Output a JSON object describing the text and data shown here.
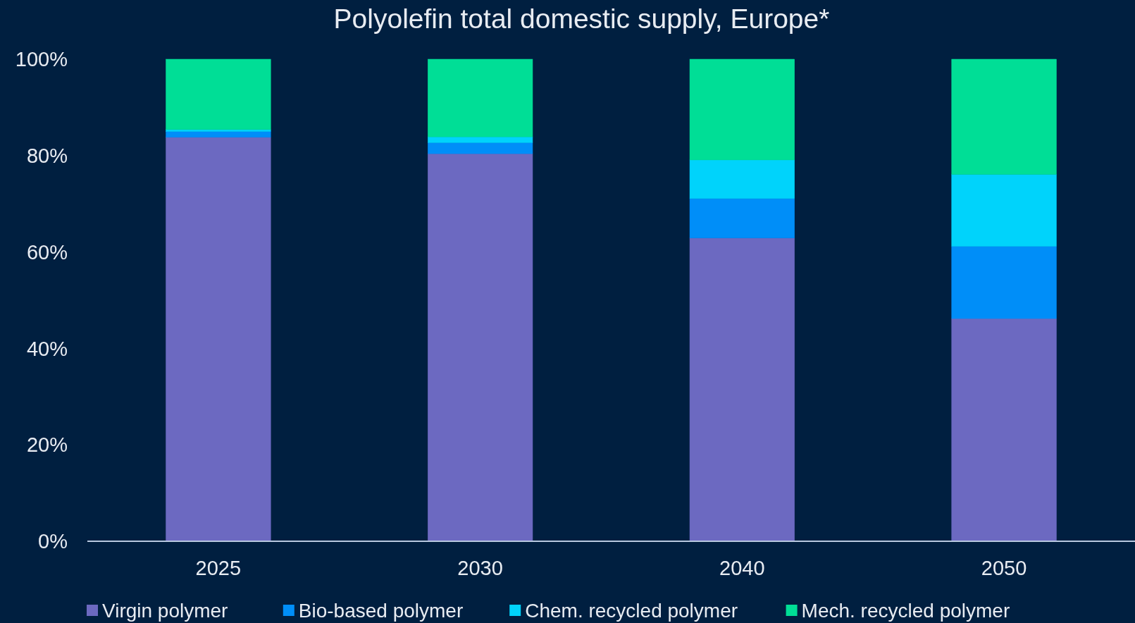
{
  "chart_data": {
    "type": "bar",
    "title": "Polyolefin total domestic supply, Europe*",
    "stacked": true,
    "categories": [
      "2025",
      "2030",
      "2040",
      "2050"
    ],
    "series": [
      {
        "name": "Virgin polymer",
        "color": "#6c69c1",
        "values": [
          83.8,
          80.4,
          62.9,
          46.2
        ]
      },
      {
        "name": "Bio-based polymer",
        "color": "#008ef8",
        "values": [
          1.2,
          2.3,
          8.2,
          15.0
        ]
      },
      {
        "name": "Chem. recycled polymer",
        "color": "#00d3fb",
        "values": [
          0.4,
          1.2,
          8.0,
          14.9
        ]
      },
      {
        "name": "Mech. recycled polymer",
        "color": "#00de96",
        "values": [
          14.6,
          16.1,
          20.9,
          23.9
        ]
      }
    ],
    "ylim": [
      0,
      100
    ],
    "yticks": [
      {
        "value": 0,
        "label": "0%"
      },
      {
        "value": 20,
        "label": "20%"
      },
      {
        "value": 40,
        "label": "40%"
      },
      {
        "value": 60,
        "label": "60%"
      },
      {
        "value": 80,
        "label": "80%"
      },
      {
        "value": 100,
        "label": "100%"
      }
    ],
    "legend": "bottom"
  }
}
